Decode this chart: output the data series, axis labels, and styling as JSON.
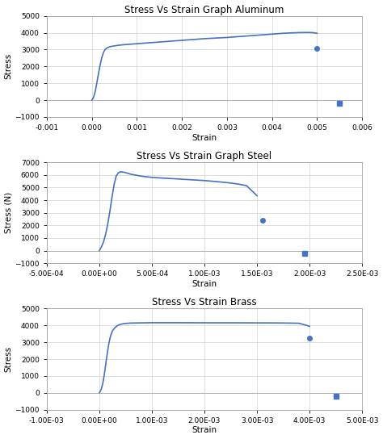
{
  "graphs": [
    {
      "title": "Stress Vs Strain Graph Aluminum",
      "xlabel": "Strain",
      "ylabel": "Stress",
      "xlim": [
        -0.001,
        0.006
      ],
      "ylim": [
        -1000,
        5000
      ],
      "xticks": [
        -0.001,
        0.0,
        0.001,
        0.002,
        0.003,
        0.004,
        0.005,
        0.006
      ],
      "yticks": [
        -1000,
        0,
        1000,
        2000,
        3000,
        4000,
        5000
      ],
      "curve_color": "#4472C4",
      "curve_points": [
        [
          0.0,
          0
        ],
        [
          2e-05,
          80
        ],
        [
          4e-05,
          190
        ],
        [
          6e-05,
          350
        ],
        [
          8e-05,
          570
        ],
        [
          0.0001,
          850
        ],
        [
          0.00012,
          1150
        ],
        [
          0.00014,
          1450
        ],
        [
          0.00016,
          1750
        ],
        [
          0.00018,
          2020
        ],
        [
          0.0002,
          2280
        ],
        [
          0.00022,
          2500
        ],
        [
          0.00024,
          2680
        ],
        [
          0.00026,
          2830
        ],
        [
          0.00028,
          2940
        ],
        [
          0.0003,
          3020
        ],
        [
          0.00035,
          3120
        ],
        [
          0.0004,
          3170
        ],
        [
          0.00045,
          3200
        ],
        [
          0.0005,
          3220
        ],
        [
          0.0006,
          3260
        ],
        [
          0.0007,
          3290
        ],
        [
          0.0008,
          3310
        ],
        [
          0.0009,
          3330
        ],
        [
          0.001,
          3350
        ],
        [
          0.0015,
          3450
        ],
        [
          0.002,
          3550
        ],
        [
          0.0025,
          3650
        ],
        [
          0.003,
          3720
        ],
        [
          0.0032,
          3760
        ],
        [
          0.0034,
          3800
        ],
        [
          0.0036,
          3840
        ],
        [
          0.0038,
          3880
        ],
        [
          0.004,
          3920
        ],
        [
          0.0041,
          3940
        ],
        [
          0.0042,
          3960
        ],
        [
          0.0043,
          3975
        ],
        [
          0.0044,
          3990
        ],
        [
          0.0045,
          4000
        ],
        [
          0.0046,
          4010
        ],
        [
          0.0047,
          4015
        ],
        [
          0.0048,
          4015
        ],
        [
          0.0049,
          4010
        ],
        [
          0.005,
          3970
        ]
      ],
      "isolated_point": [
        0.005,
        3050
      ],
      "break_point": [
        0.0055,
        -200
      ],
      "break_marker": "s",
      "use_scientific_x": false
    },
    {
      "title": "Stress Vs Strain Graph Steel",
      "xlabel": "Strain",
      "ylabel": "Stress (N)",
      "xlim": [
        -0.0005,
        0.0025
      ],
      "ylim": [
        -1000,
        7000
      ],
      "xticks": [
        -0.0005,
        0.0,
        0.0005,
        0.001,
        0.0015,
        0.002,
        0.0025
      ],
      "yticks": [
        -1000,
        0,
        1000,
        2000,
        3000,
        4000,
        5000,
        6000,
        7000
      ],
      "curve_color": "#4472C4",
      "curve_points": [
        [
          0.0,
          0
        ],
        [
          2e-05,
          300
        ],
        [
          4e-05,
          700
        ],
        [
          6e-05,
          1300
        ],
        [
          8e-05,
          2100
        ],
        [
          0.0001,
          3100
        ],
        [
          0.00012,
          4200
        ],
        [
          0.00014,
          5200
        ],
        [
          0.00016,
          5900
        ],
        [
          0.00018,
          6150
        ],
        [
          0.0002,
          6250
        ],
        [
          0.00022,
          6230
        ],
        [
          0.00025,
          6180
        ],
        [
          0.0003,
          6050
        ],
        [
          0.0004,
          5900
        ],
        [
          0.0005,
          5800
        ],
        [
          0.0006,
          5750
        ],
        [
          0.0007,
          5700
        ],
        [
          0.0008,
          5650
        ],
        [
          0.0009,
          5600
        ],
        [
          0.001,
          5550
        ],
        [
          0.0011,
          5480
        ],
        [
          0.0012,
          5400
        ],
        [
          0.0013,
          5300
        ],
        [
          0.0014,
          5150
        ],
        [
          0.0015,
          4350
        ]
      ],
      "isolated_point": [
        0.00155,
        2400
      ],
      "break_point": [
        0.00195,
        -200
      ],
      "break_marker": "s",
      "use_scientific_x": true
    },
    {
      "title": "Stress Vs Strain Brass",
      "xlabel": "Strain",
      "ylabel": "Stress",
      "xlim": [
        -0.001,
        0.005
      ],
      "ylim": [
        -1000,
        5000
      ],
      "xticks": [
        -0.001,
        0.0,
        0.001,
        0.002,
        0.003,
        0.004,
        0.005
      ],
      "yticks": [
        -1000,
        0,
        1000,
        2000,
        3000,
        4000,
        5000
      ],
      "curve_color": "#4472C4",
      "curve_points": [
        [
          0.0,
          0
        ],
        [
          2e-05,
          100
        ],
        [
          4e-05,
          250
        ],
        [
          6e-05,
          480
        ],
        [
          8e-05,
          800
        ],
        [
          0.0001,
          1200
        ],
        [
          0.00012,
          1650
        ],
        [
          0.00014,
          2100
        ],
        [
          0.00016,
          2520
        ],
        [
          0.00018,
          2900
        ],
        [
          0.0002,
          3200
        ],
        [
          0.00022,
          3430
        ],
        [
          0.00025,
          3680
        ],
        [
          0.0003,
          3880
        ],
        [
          0.00035,
          4000
        ],
        [
          0.0004,
          4060
        ],
        [
          0.00045,
          4100
        ],
        [
          0.0005,
          4120
        ],
        [
          0.0006,
          4140
        ],
        [
          0.0008,
          4150
        ],
        [
          0.001,
          4160
        ],
        [
          0.0015,
          4160
        ],
        [
          0.002,
          4155
        ],
        [
          0.0025,
          4155
        ],
        [
          0.003,
          4150
        ],
        [
          0.0032,
          4148
        ],
        [
          0.0034,
          4145
        ],
        [
          0.0036,
          4140
        ],
        [
          0.0038,
          4130
        ],
        [
          0.004,
          3950
        ]
      ],
      "isolated_point": [
        0.004,
        3250
      ],
      "break_point": [
        0.0045,
        -200
      ],
      "break_marker": "s",
      "use_scientific_x": true
    }
  ],
  "bg_color": "#ffffff",
  "grid_color": "#d9d9d9",
  "line_width": 1.2,
  "dot_size": 4,
  "break_size": 4
}
